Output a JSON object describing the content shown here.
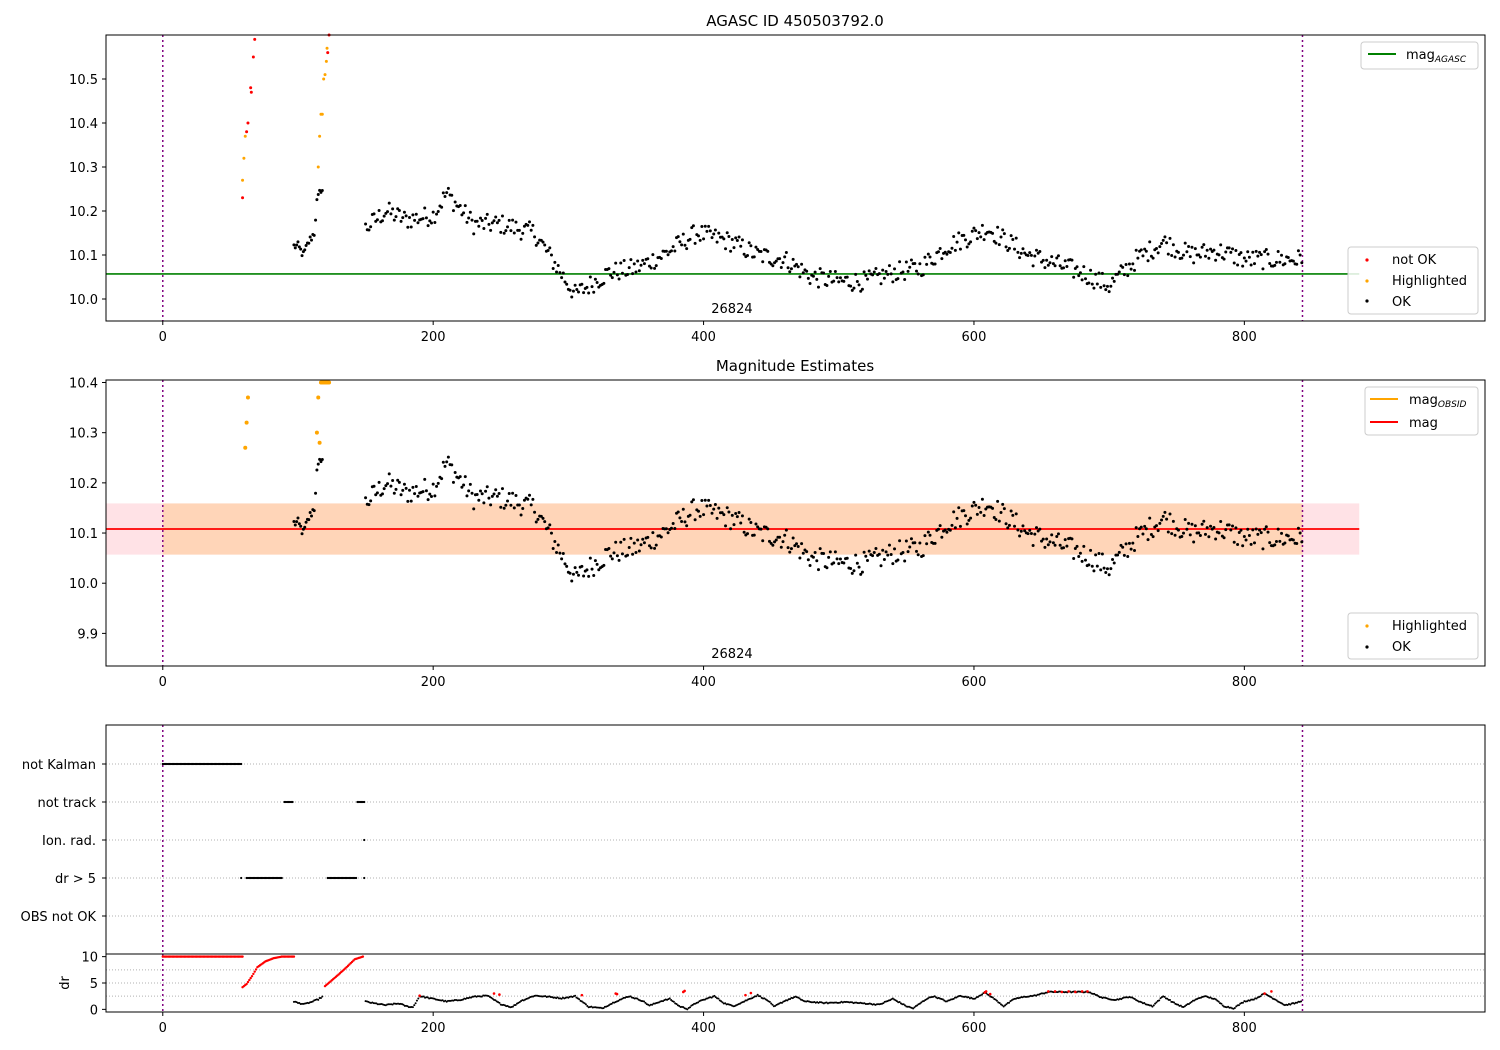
{
  "chart_data": [
    {
      "type": "scatter",
      "title": "AGASC ID 450503792.0",
      "xlim": [
        -42,
        978
      ],
      "ylim": [
        9.95,
        10.6
      ],
      "xticks": [
        0,
        200,
        400,
        600,
        800
      ],
      "yticks": [
        10.0,
        10.1,
        10.2,
        10.3,
        10.4,
        10.5
      ],
      "ytick_labels": [
        "10.0",
        "10.1",
        "10.2",
        "10.3",
        "10.4",
        "10.5"
      ],
      "obs_boundaries": [
        0,
        843
      ],
      "obsid_label": "26824",
      "mag_agasc": 10.057,
      "mag_agasc_label": "mag",
      "mag_agasc_sub": "AGASC",
      "legend_top": [
        {
          "label": "mag",
          "sub": "AGASC",
          "color": "#008000"
        }
      ],
      "legend_bottom": [
        {
          "label": "not OK",
          "color": "#ff0000"
        },
        {
          "label": "Highlighted",
          "color": "#ffa500"
        },
        {
          "label": "OK",
          "color": "#000000"
        }
      ],
      "anchors_ok": [
        [
          100,
          10.12
        ],
        [
          104,
          10.1
        ],
        [
          108,
          10.13
        ],
        [
          112,
          10.15
        ],
        [
          114,
          10.22
        ],
        [
          117,
          10.25
        ],
        [
          150,
          10.16
        ],
        [
          165,
          10.2
        ],
        [
          180,
          10.18
        ],
        [
          200,
          10.19
        ],
        [
          210,
          10.24
        ],
        [
          230,
          10.17
        ],
        [
          250,
          10.17
        ],
        [
          275,
          10.15
        ],
        [
          290,
          10.08
        ],
        [
          305,
          10.01
        ],
        [
          330,
          10.06
        ],
        [
          350,
          10.07
        ],
        [
          370,
          10.1
        ],
        [
          395,
          10.15
        ],
        [
          420,
          10.13
        ],
        [
          440,
          10.1
        ],
        [
          460,
          10.09
        ],
        [
          480,
          10.05
        ],
        [
          500,
          10.04
        ],
        [
          520,
          10.04
        ],
        [
          540,
          10.06
        ],
        [
          560,
          10.07
        ],
        [
          580,
          10.12
        ],
        [
          610,
          10.16
        ],
        [
          640,
          10.1
        ],
        [
          660,
          10.08
        ],
        [
          680,
          10.06
        ],
        [
          700,
          10.03
        ],
        [
          720,
          10.09
        ],
        [
          740,
          10.13
        ],
        [
          760,
          10.1
        ],
        [
          780,
          10.11
        ],
        [
          800,
          10.09
        ],
        [
          820,
          10.09
        ],
        [
          840,
          10.09
        ]
      ],
      "not_ok": [
        [
          59,
          10.23
        ],
        [
          62,
          10.38
        ],
        [
          63,
          10.4
        ],
        [
          65,
          10.48
        ],
        [
          65.5,
          10.47
        ],
        [
          67,
          10.55
        ],
        [
          68,
          10.59
        ],
        [
          122,
          10.56
        ],
        [
          123,
          10.6
        ]
      ],
      "highlighted": [
        [
          59,
          10.27
        ],
        [
          60,
          10.32
        ],
        [
          61,
          10.37
        ],
        [
          115,
          10.3
        ],
        [
          116,
          10.37
        ],
        [
          117,
          10.42
        ],
        [
          118,
          10.42
        ],
        [
          119,
          10.5
        ],
        [
          120,
          10.51
        ],
        [
          121,
          10.54
        ],
        [
          121.5,
          10.57
        ]
      ]
    },
    {
      "type": "scatter",
      "title": "Magnitude Estimates",
      "xlim": [
        -42,
        978
      ],
      "ylim": [
        9.835,
        10.405
      ],
      "xticks": [
        0,
        200,
        400,
        600,
        800
      ],
      "yticks": [
        9.9,
        10.0,
        10.1,
        10.2,
        10.3,
        10.4
      ],
      "ytick_labels": [
        "9.9",
        "10.0",
        "10.1",
        "10.2",
        "10.3",
        "10.4"
      ],
      "obs_boundaries": [
        0,
        843
      ],
      "obsid_label": "26824",
      "mag": 10.108,
      "mag_band": [
        10.057,
        10.159
      ],
      "band_x": [
        -42,
        885
      ],
      "legend_top": [
        {
          "label": "mag",
          "sub": "OBSID",
          "color": "#ffa500"
        },
        {
          "label": "mag",
          "sub": "",
          "color": "#ff0000"
        }
      ],
      "legend_bottom": [
        {
          "label": "Highlighted",
          "color": "#ffa500"
        },
        {
          "label": "OK",
          "color": "#000000"
        }
      ],
      "highlighted": [
        [
          61,
          10.27
        ],
        [
          62,
          10.32
        ],
        [
          63,
          10.37
        ],
        [
          114,
          10.3
        ],
        [
          115,
          10.37
        ],
        [
          116,
          10.28
        ],
        [
          117,
          10.4
        ],
        [
          118,
          10.4
        ],
        [
          119,
          10.4
        ],
        [
          120,
          10.4
        ],
        [
          121,
          10.4
        ],
        [
          122,
          10.4
        ],
        [
          123,
          10.4
        ]
      ]
    },
    {
      "type": "scatter",
      "title": "",
      "xlim": [
        -42,
        978
      ],
      "xticks": [
        0,
        200,
        400,
        600,
        800
      ],
      "obs_boundaries": [
        0,
        843
      ],
      "flag_rows": [
        "not Kalman",
        "not track",
        "Ion. rad.",
        "dr > 5",
        "OBS not OK"
      ],
      "flags": [
        {
          "row": "not Kalman",
          "ranges": [
            [
              0,
              58
            ]
          ]
        },
        {
          "row": "not track",
          "ranges": [
            [
              90,
              96
            ],
            [
              144,
              149
            ]
          ]
        },
        {
          "row": "Ion. rad.",
          "ranges": [
            [
              149,
              149
            ]
          ]
        },
        {
          "row": "dr > 5",
          "ranges": [
            [
              58,
              58
            ],
            [
              62,
              88
            ],
            [
              122,
              143
            ],
            [
              149,
              149
            ]
          ]
        },
        {
          "row": "OBS not OK",
          "ranges": []
        }
      ]
    },
    {
      "type": "scatter",
      "title": "",
      "ylabel": "dr",
      "xlim": [
        -42,
        978
      ],
      "ylim": [
        -0.5,
        10.5
      ],
      "xticks": [
        0,
        200,
        400,
        600,
        800
      ],
      "yticks": [
        0,
        5,
        10
      ],
      "ytick_labels": [
        "0",
        "5",
        "10"
      ],
      "obs_boundaries": [
        0,
        843
      ],
      "red_segments": [
        [
          [
            0,
            10
          ],
          [
            59,
            10
          ]
        ],
        [
          [
            59,
            4.2
          ],
          [
            62,
            4.8
          ],
          [
            66,
            6.3
          ],
          [
            70,
            8.0
          ],
          [
            76,
            9.1
          ],
          [
            82,
            9.7
          ],
          [
            88,
            10
          ],
          [
            97,
            10
          ]
        ],
        [
          [
            120,
            4.4
          ],
          [
            125,
            5.5
          ],
          [
            130,
            6.6
          ],
          [
            136,
            8.0
          ],
          [
            142,
            9.5
          ],
          [
            148,
            10
          ]
        ]
      ],
      "red_dots": [
        [
          190,
          2.6
        ],
        [
          245,
          3.0
        ],
        [
          249,
          2.8
        ],
        [
          310,
          2.7
        ],
        [
          335,
          3.0
        ],
        [
          336,
          2.9
        ],
        [
          385,
          3.3
        ],
        [
          386,
          3.5
        ],
        [
          431,
          2.7
        ],
        [
          435,
          3.1
        ],
        [
          608,
          3.2
        ],
        [
          609,
          3.4
        ],
        [
          612,
          2.9
        ],
        [
          655,
          3.4
        ],
        [
          660,
          3.4
        ],
        [
          665,
          3.3
        ],
        [
          670,
          3.4
        ],
        [
          675,
          3.3
        ],
        [
          680,
          3.4
        ],
        [
          684,
          3.4
        ],
        [
          815,
          3.0
        ],
        [
          820,
          3.4
        ]
      ],
      "black_anchors": [
        [
          97,
          1.5
        ],
        [
          100,
          1.2
        ],
        [
          105,
          1.0
        ],
        [
          110,
          1.4
        ],
        [
          115,
          1.9
        ],
        [
          118,
          2.4
        ],
        [
          150,
          1.5
        ],
        [
          155,
          1.2
        ],
        [
          160,
          1.0
        ],
        [
          165,
          0.8
        ],
        [
          170,
          1.0
        ],
        [
          175,
          1.1
        ],
        [
          180,
          0.6
        ],
        [
          185,
          0.4
        ],
        [
          190,
          2.5
        ],
        [
          200,
          2.0
        ],
        [
          210,
          1.5
        ],
        [
          220,
          1.8
        ],
        [
          230,
          2.4
        ],
        [
          240,
          2.6
        ],
        [
          250,
          1.0
        ],
        [
          258,
          0.4
        ],
        [
          265,
          1.6
        ],
        [
          275,
          2.6
        ],
        [
          285,
          2.4
        ],
        [
          295,
          2.1
        ],
        [
          305,
          2.5
        ],
        [
          315,
          0.5
        ],
        [
          325,
          0.2
        ],
        [
          335,
          1.5
        ],
        [
          345,
          2.5
        ],
        [
          355,
          1.6
        ],
        [
          360,
          0.7
        ],
        [
          368,
          1.5
        ],
        [
          375,
          2.0
        ],
        [
          382,
          0.6
        ],
        [
          388,
          0.1
        ],
        [
          395,
          1.3
        ],
        [
          402,
          2.0
        ],
        [
          408,
          2.5
        ],
        [
          415,
          1.2
        ],
        [
          422,
          0.6
        ],
        [
          430,
          1.5
        ],
        [
          440,
          2.7
        ],
        [
          448,
          1.6
        ],
        [
          452,
          0.5
        ],
        [
          460,
          1.6
        ],
        [
          468,
          2.4
        ],
        [
          475,
          1.5
        ],
        [
          490,
          1.2
        ],
        [
          505,
          1.4
        ],
        [
          520,
          1.1
        ],
        [
          530,
          0.9
        ],
        [
          540,
          2.0
        ],
        [
          550,
          0.6
        ],
        [
          555,
          0.2
        ],
        [
          565,
          2.0
        ],
        [
          570,
          2.5
        ],
        [
          580,
          1.5
        ],
        [
          590,
          2.6
        ],
        [
          600,
          2.0
        ],
        [
          608,
          3.2
        ],
        [
          615,
          2.0
        ],
        [
          622,
          0.6
        ],
        [
          630,
          2.0
        ],
        [
          638,
          2.4
        ],
        [
          645,
          2.6
        ],
        [
          655,
          3.3
        ],
        [
          685,
          3.3
        ],
        [
          695,
          2.2
        ],
        [
          705,
          1.8
        ],
        [
          715,
          2.4
        ],
        [
          725,
          1.2
        ],
        [
          732,
          0.6
        ],
        [
          740,
          2.5
        ],
        [
          748,
          1.2
        ],
        [
          755,
          0.4
        ],
        [
          762,
          1.6
        ],
        [
          770,
          2.5
        ],
        [
          778,
          2.0
        ],
        [
          785,
          0.6
        ],
        [
          792,
          0.2
        ],
        [
          800,
          1.5
        ],
        [
          808,
          2.0
        ],
        [
          815,
          3.0
        ],
        [
          822,
          2.0
        ],
        [
          830,
          0.8
        ],
        [
          838,
          1.2
        ],
        [
          842,
          1.6
        ]
      ]
    }
  ]
}
